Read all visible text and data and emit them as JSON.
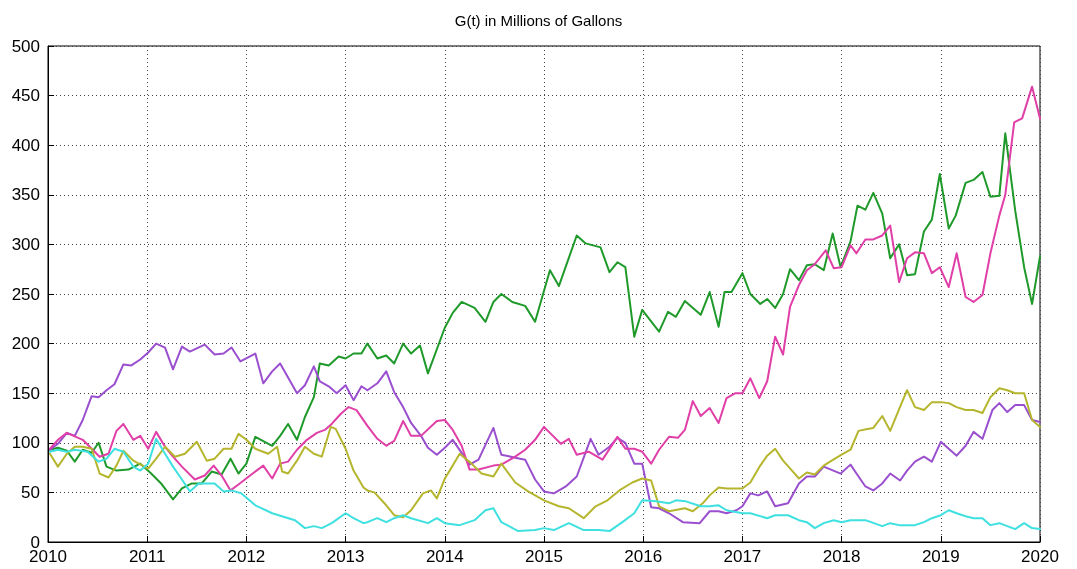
{
  "chart_data": {
    "type": "line",
    "title": "G(t) in Millions of Gallons",
    "xlim": [
      2010,
      2020
    ],
    "xticks": [
      2010,
      2011,
      2012,
      2013,
      2014,
      2015,
      2016,
      2017,
      2018,
      2019,
      2020
    ],
    "ylim": [
      0,
      500
    ],
    "yticks": [
      0,
      50,
      100,
      150,
      200,
      250,
      300,
      350,
      400,
      450,
      500
    ],
    "grid": true,
    "marker": "none",
    "line_style": "solid",
    "series": [
      {
        "color": "#1f9a2a",
        "x": [
          2010.02,
          2010.1,
          2010.19,
          2010.27,
          2010.35,
          2010.44,
          2010.51,
          2010.59,
          2010.69,
          2010.81,
          2010.93,
          2011.04,
          2011.14,
          2011.26,
          2011.35,
          2011.45,
          2011.55,
          2011.65,
          2011.75,
          2011.84,
          2011.92,
          2012.0,
          2012.09,
          2012.26,
          2012.34,
          2012.42,
          2012.51,
          2012.59,
          2012.68,
          2012.74,
          2012.83,
          2012.93,
          2013.0,
          2013.08,
          2013.16,
          2013.22,
          2013.32,
          2013.41,
          2013.49,
          2013.58,
          2013.66,
          2013.75,
          2013.83,
          2014.0,
          2014.08,
          2014.17,
          2014.3,
          2014.41,
          2014.49,
          2014.57,
          2014.68,
          2014.81,
          2014.91,
          2015.06,
          2015.15,
          2015.33,
          2015.42,
          2015.57,
          2015.66,
          2015.74,
          2015.82,
          2015.91,
          2015.99,
          2016.16,
          2016.25,
          2016.33,
          2016.42,
          2016.58,
          2016.67,
          2016.76,
          2016.82,
          2016.89,
          2017.0,
          2017.08,
          2017.18,
          2017.25,
          2017.33,
          2017.41,
          2017.48,
          2017.57,
          2017.65,
          2017.73,
          2017.82,
          2017.91,
          2017.99,
          2018.09,
          2018.16,
          2018.24,
          2018.32,
          2018.41,
          2018.49,
          2018.58,
          2018.66,
          2018.74,
          2018.83,
          2018.91,
          2018.99,
          2019.08,
          2019.15,
          2019.25,
          2019.33,
          2019.42,
          2019.5,
          2019.59,
          2019.65,
          2019.75,
          2019.84,
          2019.92,
          2020.0
        ],
        "values": [
          93,
          95,
          92,
          81,
          93,
          90,
          100,
          76,
          72,
          73,
          79,
          69,
          59,
          43,
          54,
          59,
          59,
          71,
          68,
          84,
          69,
          79,
          106,
          97,
          107,
          119,
          103,
          126,
          146,
          180,
          178,
          187,
          185,
          190,
          190,
          200,
          185,
          188,
          180,
          200,
          190,
          198,
          170,
          216,
          231,
          242,
          236,
          222,
          242,
          250,
          242,
          238,
          222,
          274,
          258,
          309,
          301,
          297,
          272,
          282,
          277,
          207,
          234,
          212,
          232,
          227,
          243,
          229,
          252,
          217,
          252,
          252,
          271,
          250,
          240,
          245,
          236,
          250,
          275,
          264,
          279,
          280,
          274,
          311,
          277,
          303,
          339,
          335,
          352,
          331,
          286,
          300,
          269,
          270,
          313,
          325,
          371,
          316,
          329,
          362,
          365,
          373,
          348,
          349,
          412,
          334,
          277,
          240,
          288
        ]
      },
      {
        "color": "#9a4fcf",
        "x": [
          2010.02,
          2010.1,
          2010.19,
          2010.27,
          2010.35,
          2010.44,
          2010.51,
          2010.59,
          2010.67,
          2010.76,
          2010.84,
          2010.93,
          2011.01,
          2011.09,
          2011.18,
          2011.26,
          2011.35,
          2011.43,
          2011.58,
          2011.68,
          2011.77,
          2011.85,
          2011.94,
          2012.09,
          2012.17,
          2012.26,
          2012.34,
          2012.51,
          2012.59,
          2012.68,
          2012.74,
          2012.83,
          2012.91,
          2013.0,
          2013.08,
          2013.16,
          2013.22,
          2013.32,
          2013.41,
          2013.49,
          2013.58,
          2013.66,
          2013.76,
          2013.83,
          2013.92,
          2014.0,
          2014.08,
          2014.25,
          2014.34,
          2014.49,
          2014.57,
          2014.71,
          2014.81,
          2014.91,
          2015.0,
          2015.1,
          2015.22,
          2015.33,
          2015.47,
          2015.55,
          2015.66,
          2015.74,
          2015.82,
          2015.91,
          2015.99,
          2016.08,
          2016.16,
          2016.26,
          2016.4,
          2016.57,
          2016.67,
          2016.76,
          2016.84,
          2016.94,
          2017.0,
          2017.08,
          2017.16,
          2017.25,
          2017.33,
          2017.46,
          2017.57,
          2017.65,
          2017.73,
          2017.82,
          2017.99,
          2018.09,
          2018.15,
          2018.24,
          2018.32,
          2018.41,
          2018.49,
          2018.59,
          2018.66,
          2018.74,
          2018.83,
          2018.91,
          2019.0,
          2019.08,
          2019.16,
          2019.25,
          2019.33,
          2019.42,
          2019.52,
          2019.59,
          2019.67,
          2019.75,
          2019.84,
          2019.92,
          2020.0
        ],
        "values": [
          93,
          99,
          110,
          107,
          123,
          147,
          146,
          153,
          159,
          179,
          178,
          184,
          191,
          200,
          196,
          174,
          197,
          192,
          199,
          189,
          190,
          196,
          182,
          190,
          160,
          172,
          180,
          150,
          158,
          177,
          162,
          157,
          150,
          158,
          143,
          157,
          153,
          160,
          172,
          151,
          136,
          120,
          107,
          95,
          88,
          95,
          103,
          78,
          83,
          115,
          88,
          85,
          83,
          63,
          51,
          49,
          56,
          66,
          104,
          88,
          96,
          105,
          100,
          79,
          79,
          35,
          34,
          29,
          20,
          19,
          31,
          31,
          29,
          32,
          36,
          49,
          47,
          51,
          36,
          39,
          59,
          66,
          66,
          76,
          69,
          78,
          69,
          56,
          52,
          59,
          69,
          62,
          72,
          81,
          86,
          81,
          101,
          94,
          87,
          97,
          111,
          104,
          133,
          140,
          131,
          138,
          138,
          123,
          121
        ]
      },
      {
        "color": "#e03fa8",
        "x": [
          2010.02,
          2010.1,
          2010.19,
          2010.35,
          2010.52,
          2010.61,
          2010.69,
          2010.76,
          2010.86,
          2010.93,
          2011.01,
          2011.09,
          2011.18,
          2011.26,
          2011.35,
          2011.48,
          2011.58,
          2011.67,
          2011.75,
          2011.84,
          2011.92,
          2012.05,
          2012.17,
          2012.26,
          2012.34,
          2012.42,
          2012.51,
          2012.61,
          2012.71,
          2012.79,
          2012.86,
          2012.95,
          2013.03,
          2013.11,
          2013.22,
          2013.32,
          2013.41,
          2013.49,
          2013.58,
          2013.66,
          2013.76,
          2013.92,
          2014.0,
          2014.08,
          2014.17,
          2014.25,
          2014.34,
          2014.49,
          2014.57,
          2014.71,
          2014.81,
          2014.91,
          2015.0,
          2015.08,
          2015.17,
          2015.25,
          2015.33,
          2015.45,
          2015.59,
          2015.74,
          2015.82,
          2015.91,
          2015.99,
          2016.08,
          2016.16,
          2016.26,
          2016.35,
          2016.42,
          2016.5,
          2016.58,
          2016.67,
          2016.76,
          2016.84,
          2016.93,
          2017.0,
          2017.08,
          2017.17,
          2017.25,
          2017.33,
          2017.41,
          2017.48,
          2017.57,
          2017.65,
          2017.73,
          2017.84,
          2017.92,
          2018.0,
          2018.09,
          2018.15,
          2018.24,
          2018.32,
          2018.41,
          2018.49,
          2018.58,
          2018.66,
          2018.74,
          2018.83,
          2018.91,
          2018.99,
          2019.08,
          2019.16,
          2019.25,
          2019.33,
          2019.42,
          2019.5,
          2019.59,
          2019.65,
          2019.74,
          2019.82,
          2019.92,
          2020.0
        ],
        "values": [
          94,
          103,
          110,
          103,
          86,
          89,
          112,
          119,
          103,
          107,
          94,
          111,
          96,
          86,
          76,
          63,
          67,
          77,
          67,
          52,
          58,
          68,
          77,
          64,
          79,
          81,
          93,
          103,
          110,
          113,
          119,
          129,
          136,
          133,
          117,
          104,
          97,
          102,
          122,
          107,
          107,
          122,
          123,
          113,
          97,
          73,
          73,
          77,
          78,
          86,
          93,
          103,
          116,
          108,
          99,
          104,
          88,
          91,
          83,
          106,
          94,
          94,
          91,
          79,
          93,
          106,
          105,
          113,
          142,
          127,
          135,
          120,
          145,
          150,
          150,
          165,
          145,
          162,
          207,
          189,
          237,
          259,
          274,
          280,
          294,
          276,
          277,
          299,
          291,
          305,
          305,
          309,
          319,
          262,
          286,
          292,
          291,
          271,
          277,
          257,
          291,
          247,
          242,
          249,
          291,
          329,
          350,
          423,
          427,
          459,
          427
        ]
      },
      {
        "color": "#b5b52e",
        "x": [
          2010.02,
          2010.1,
          2010.19,
          2010.27,
          2010.35,
          2010.44,
          2010.52,
          2010.61,
          2010.69,
          2010.76,
          2010.86,
          2011.01,
          2011.09,
          2011.18,
          2011.28,
          2011.38,
          2011.5,
          2011.6,
          2011.68,
          2011.77,
          2011.85,
          2011.92,
          2012.0,
          2012.09,
          2012.22,
          2012.31,
          2012.36,
          2012.42,
          2012.51,
          2012.59,
          2012.68,
          2012.76,
          2012.85,
          2012.9,
          2013.0,
          2013.08,
          2013.18,
          2013.22,
          2013.29,
          2013.41,
          2013.49,
          2013.58,
          2013.66,
          2013.78,
          2013.86,
          2013.92,
          2014.0,
          2014.08,
          2014.15,
          2014.27,
          2014.37,
          2014.49,
          2014.57,
          2014.71,
          2014.84,
          2015.0,
          2015.15,
          2015.25,
          2015.4,
          2015.52,
          2015.64,
          2015.76,
          2015.89,
          2015.99,
          2016.08,
          2016.16,
          2016.26,
          2016.42,
          2016.5,
          2016.6,
          2016.67,
          2016.76,
          2016.84,
          2017.0,
          2017.08,
          2017.18,
          2017.25,
          2017.33,
          2017.41,
          2017.5,
          2017.57,
          2017.65,
          2017.73,
          2017.82,
          2017.9,
          2018.0,
          2018.09,
          2018.17,
          2018.26,
          2018.32,
          2018.41,
          2018.49,
          2018.58,
          2018.66,
          2018.74,
          2018.83,
          2018.91,
          2019.0,
          2019.08,
          2019.16,
          2019.25,
          2019.33,
          2019.42,
          2019.5,
          2019.59,
          2019.67,
          2019.75,
          2019.84,
          2019.92,
          2020.0
        ],
        "values": [
          89,
          76,
          89,
          96,
          96,
          94,
          69,
          65,
          77,
          92,
          82,
          74,
          84,
          96,
          86,
          89,
          101,
          82,
          84,
          94,
          94,
          109,
          103,
          94,
          89,
          96,
          71,
          69,
          82,
          96,
          89,
          86,
          116,
          114,
          94,
          72,
          55,
          52,
          50,
          37,
          27,
          25,
          32,
          49,
          52,
          44,
          64,
          77,
          89,
          79,
          69,
          66,
          79,
          60,
          51,
          42,
          36,
          34,
          24,
          36,
          42,
          52,
          60,
          64,
          62,
          36,
          31,
          34,
          31,
          39,
          47,
          55,
          54,
          54,
          60,
          77,
          87,
          94,
          82,
          72,
          64,
          70,
          68,
          77,
          82,
          88,
          93,
          112,
          114,
          115,
          127,
          112,
          134,
          153,
          136,
          133,
          141,
          141,
          140,
          136,
          133,
          133,
          130,
          146,
          155,
          153,
          150,
          150,
          123,
          116
        ]
      },
      {
        "color": "#3fe0e0",
        "x": [
          2010.02,
          2010.1,
          2010.19,
          2010.27,
          2010.4,
          2010.51,
          2010.59,
          2010.67,
          2010.76,
          2010.86,
          2010.93,
          2011.01,
          2011.09,
          2011.18,
          2011.26,
          2011.35,
          2011.43,
          2011.52,
          2011.68,
          2011.77,
          2011.85,
          2011.95,
          2012.09,
          2012.26,
          2012.39,
          2012.49,
          2012.59,
          2012.68,
          2012.76,
          2012.86,
          2013.0,
          2013.08,
          2013.18,
          2013.22,
          2013.32,
          2013.41,
          2013.49,
          2013.58,
          2013.66,
          2013.83,
          2013.92,
          2014.0,
          2014.15,
          2014.3,
          2014.41,
          2014.49,
          2014.57,
          2014.74,
          2014.91,
          2015.0,
          2015.1,
          2015.25,
          2015.4,
          2015.55,
          2015.66,
          2015.79,
          2015.91,
          2015.99,
          2016.13,
          2016.26,
          2016.33,
          2016.43,
          2016.58,
          2016.67,
          2016.76,
          2016.84,
          2017.0,
          2017.08,
          2017.25,
          2017.33,
          2017.46,
          2017.57,
          2017.65,
          2017.73,
          2017.82,
          2017.92,
          2018.0,
          2018.09,
          2018.24,
          2018.41,
          2018.49,
          2018.58,
          2018.74,
          2018.83,
          2018.91,
          2019.0,
          2019.08,
          2019.16,
          2019.25,
          2019.33,
          2019.42,
          2019.5,
          2019.59,
          2019.67,
          2019.75,
          2019.84,
          2019.92,
          2020.0
        ],
        "values": [
          91,
          93,
          91,
          93,
          91,
          81,
          84,
          94,
          91,
          76,
          72,
          79,
          104,
          89,
          76,
          63,
          51,
          59,
          59,
          51,
          52,
          49,
          37,
          29,
          25,
          22,
          14,
          16,
          14,
          19,
          29,
          24,
          19,
          20,
          24,
          20,
          24,
          27,
          24,
          19,
          24,
          19,
          17,
          22,
          32,
          34,
          20,
          11,
          12,
          14,
          12,
          19,
          12,
          12,
          11,
          20,
          29,
          42,
          41,
          39,
          42,
          41,
          36,
          36,
          37,
          32,
          29,
          29,
          24,
          27,
          27,
          22,
          20,
          14,
          19,
          22,
          20,
          22,
          22,
          16,
          19,
          17,
          17,
          20,
          24,
          27,
          32,
          29,
          26,
          24,
          24,
          17,
          19,
          16,
          13,
          19,
          14,
          13
        ]
      }
    ]
  }
}
